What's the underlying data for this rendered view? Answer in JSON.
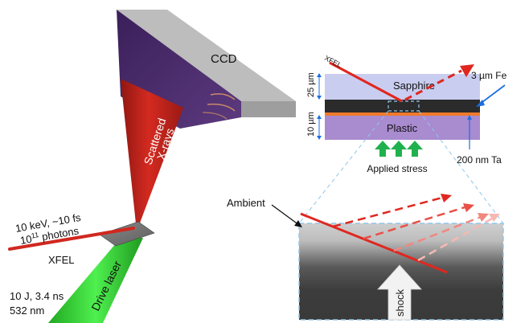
{
  "left_panel": {
    "detector_label": "CCD",
    "scattered_label_line1": "Scattered",
    "scattered_label_line2": "X-rays",
    "xfel_spec_line1": "10 keV, ~10 fs",
    "xfel_photons_base": "10",
    "xfel_photons_exp": "11",
    "xfel_photons_unit": " photons",
    "xfel_label": "XFEL",
    "drive_laser_label": "Drive laser",
    "laser_spec_line1": "10 J, 3.4 ns",
    "laser_spec_line2": "532 nm"
  },
  "target_cross_section": {
    "xfel_label": "XFEL",
    "sapphire_label": "Sapphire",
    "plastic_label": "Plastic",
    "sapphire_thickness": "25 µm",
    "plastic_thickness": "10 µm",
    "iron_label": "3 µm Fe",
    "tantalum_label": "200 nm Ta",
    "stress_label": "Applied stress"
  },
  "zoom_panel": {
    "ambient_label": "Ambient",
    "shock_label": "shock"
  },
  "colors": {
    "xray_red": "#e0271f",
    "laser_green": "#3fd63f",
    "sapphire": "#c9cdf0",
    "plastic": "#a98bd0",
    "iron_layer": "#2b2b2b",
    "tantalum_layer": "#f07a2a",
    "stress_arrows": "#1fb14d",
    "annotation_blue": "#1a6fe0",
    "dashed_outline": "#8fc6ea"
  },
  "icons": [
    "detector-block-icon",
    "target-plate-icon",
    "stress-arrow-icon",
    "shock-arrow-icon"
  ]
}
